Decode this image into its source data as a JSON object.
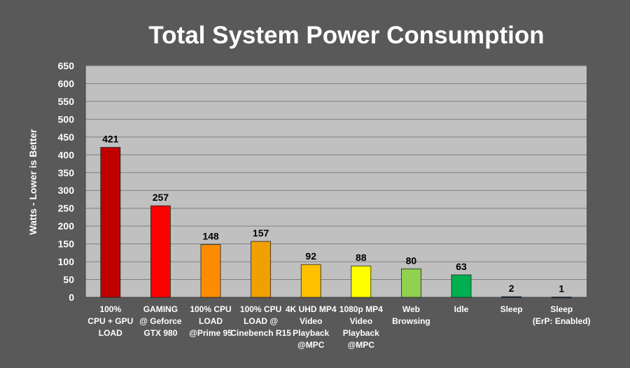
{
  "chart_data": {
    "type": "bar",
    "title": "Total System Power Consumption",
    "ylabel": "Watts - Lower is Better",
    "xlabel": "",
    "ylim": [
      0,
      650
    ],
    "y_ticks": [
      0,
      50,
      100,
      150,
      200,
      250,
      300,
      350,
      400,
      450,
      500,
      550,
      600,
      650
    ],
    "grid": true,
    "legend": "none",
    "categories": [
      [
        "100%",
        "CPU + GPU",
        "LOAD"
      ],
      [
        "GAMING",
        "@ Geforce",
        "GTX 980"
      ],
      [
        "100% CPU",
        "LOAD",
        "@Prime 95"
      ],
      [
        "100% CPU",
        "LOAD @",
        "Cinebench R15"
      ],
      [
        "4K UHD MP4",
        "Video",
        "Playback",
        "@MPC"
      ],
      [
        "1080p MP4",
        "Video",
        "Playback",
        "@MPC"
      ],
      [
        "Web",
        "Browsing"
      ],
      [
        "Idle"
      ],
      [
        "Sleep"
      ],
      [
        "Sleep",
        "(ErP: Enabled)"
      ]
    ],
    "values": [
      421,
      257,
      148,
      157,
      92,
      88,
      80,
      63,
      2,
      1
    ],
    "bar_colors": [
      "#c00000",
      "#ff0000",
      "#ff8c00",
      "#f0a000",
      "#ffc000",
      "#ffff00",
      "#92d050",
      "#00b050",
      "#17375e",
      "#17375e"
    ],
    "colors": {
      "background": "#595959",
      "plot_area": "#c0c0c0",
      "text": "#ffffff",
      "data_label": "#000000",
      "gridline": "#7f7f7f"
    }
  }
}
